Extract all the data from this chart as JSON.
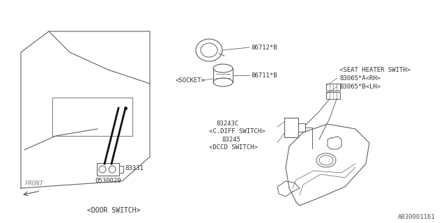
{
  "bg_color": "#FFFFFF",
  "line_color": "#606060",
  "thick_line_color": "#111111",
  "text_color": "#333333",
  "fig_id": "A830001161",
  "parts": {
    "door_switch_label": "<DOOR SWITCH>",
    "door_switch_part1": "83331",
    "door_switch_part2": "0530029",
    "socket_label": "<SOCKET>",
    "socket_part1": "86712*B",
    "socket_part2": "86711*B",
    "cdiff_label": "<C.DIFF SWITCH>",
    "cdiff_part": "83243C",
    "dccd_label": "<DCCD SWITCH>",
    "dccd_part": "83245",
    "seat_heater_label": "<SEAT HEATER SWITH>",
    "seat_heater_part1": "83065*A<RH>",
    "seat_heater_part2": "83065*B<LH>",
    "front_label": "FRONT"
  }
}
